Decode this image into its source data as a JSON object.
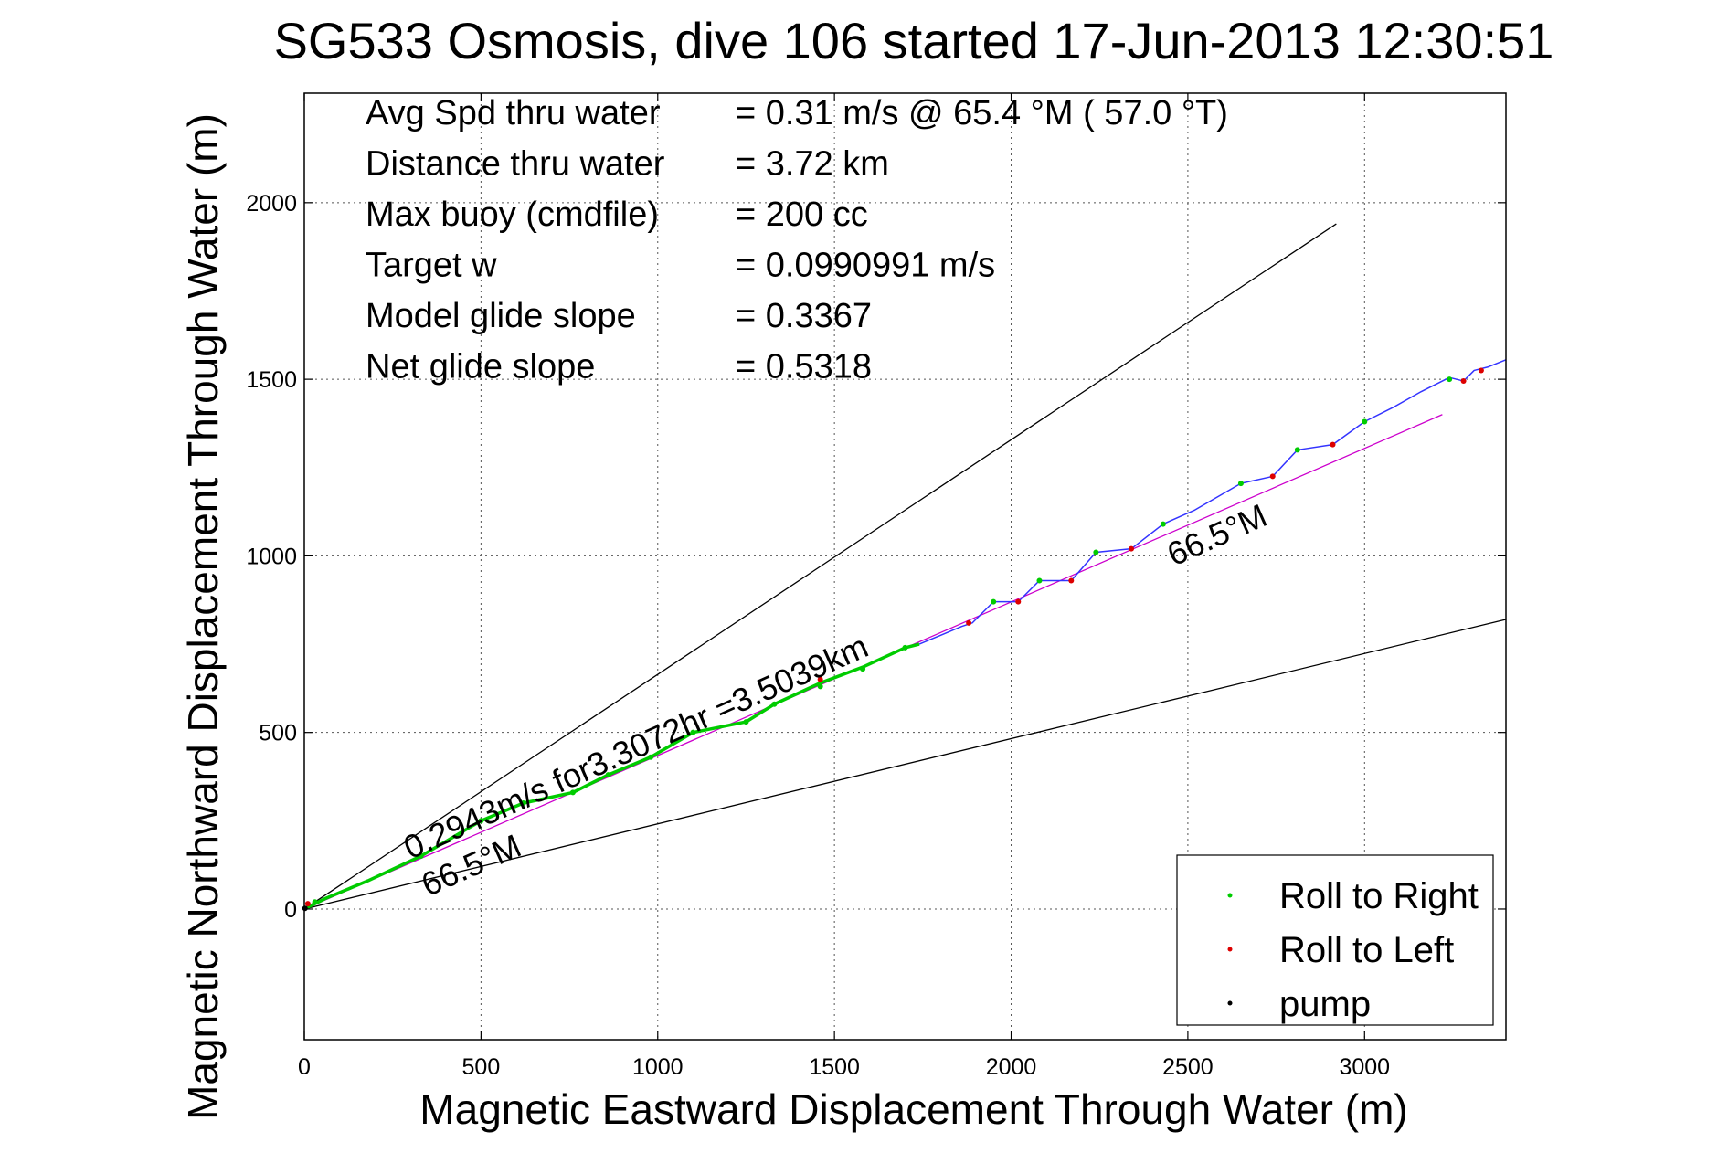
{
  "chart_data": {
    "type": "line",
    "title": "SG533 Osmosis, dive 106 started 17-Jun-2013 12:30:51",
    "xlabel": "Magnetic Eastward Displacement Through Water (m)",
    "ylabel": "Magnetic Northward Displacement Through Water (m)",
    "xlim": [
      0,
      3400
    ],
    "ylim": [
      -370,
      2310
    ],
    "xticks": [
      0,
      500,
      1000,
      1500,
      2000,
      2500,
      3000
    ],
    "yticks": [
      0,
      500,
      1000,
      1500,
      2000
    ],
    "grid": true,
    "legend_position": "bottom-right",
    "stats": [
      {
        "label": "Avg Spd thru water",
        "value": "=  0.31 m/s @  65.4 °M ( 57.0 °T)"
      },
      {
        "label": "Distance thru water",
        "value": "=  3.72 km"
      },
      {
        "label": "Max buoy (cmdfile)",
        "value": "= 200 cc"
      },
      {
        "label": "Target w",
        "value": "= 0.0990991 m/s"
      },
      {
        "label": "Model glide slope",
        "value": "= 0.3367"
      },
      {
        "label": "Net glide slope",
        "value": "= 0.5318"
      }
    ],
    "series": [
      {
        "name": "Roll to Right",
        "color": "#00cc00",
        "marker": "dot",
        "x": [
          30,
          330,
          500,
          620,
          760,
          860,
          980,
          1100,
          1250,
          1330,
          1460,
          1580,
          1700,
          1950,
          2080,
          2240,
          2430,
          2650,
          2810,
          3000,
          3240
        ],
        "y": [
          20,
          150,
          250,
          300,
          330,
          380,
          430,
          500,
          530,
          580,
          630,
          680,
          740,
          870,
          930,
          1010,
          1090,
          1205,
          1300,
          1380,
          1500
        ]
      },
      {
        "name": "Roll to Left",
        "color": "#dd0000",
        "marker": "dot",
        "x": [
          10,
          1460,
          1880,
          2020,
          2170,
          2340,
          2740,
          2910,
          3280,
          3330
        ],
        "y": [
          15,
          650,
          810,
          870,
          930,
          1020,
          1225,
          1315,
          1495,
          1525
        ]
      },
      {
        "name": "pump",
        "color": "#000000",
        "marker": "dot",
        "x": [
          2
        ],
        "y": [
          2
        ]
      },
      {
        "name": "",
        "color": "#3333ff",
        "marker": "none",
        "x": [
          1740,
          1800,
          1860,
          1890,
          1950,
          2020,
          2080,
          2170,
          2240,
          2340,
          2430,
          2520,
          2650,
          2740,
          2810,
          2910,
          3000,
          3080,
          3160,
          3240,
          3280,
          3310,
          3350,
          3400
        ],
        "y": [
          750,
          775,
          800,
          810,
          870,
          870,
          930,
          930,
          1010,
          1020,
          1090,
          1130,
          1205,
          1225,
          1300,
          1315,
          1380,
          1420,
          1465,
          1505,
          1495,
          1525,
          1535,
          1555
        ]
      },
      {
        "name": "",
        "color": "#00cc00",
        "marker": "none",
        "x": [
          0,
          60,
          180,
          330,
          500,
          620,
          760,
          860,
          980,
          1100,
          1250,
          1330,
          1460,
          1580,
          1700,
          1740
        ],
        "y": [
          0,
          30,
          80,
          150,
          250,
          300,
          330,
          380,
          430,
          500,
          530,
          580,
          640,
          685,
          740,
          750
        ]
      }
    ],
    "reference_lines": [
      {
        "x": [
          0,
          2920
        ],
        "y": [
          0,
          1940
        ],
        "color": "#000000"
      },
      {
        "x": [
          0,
          3400
        ],
        "y": [
          0,
          820
        ],
        "color": "#000000"
      },
      {
        "x": [
          0,
          3220
        ],
        "y": [
          0,
          1400
        ],
        "color": "#cc00cc"
      }
    ],
    "annotations": [
      {
        "text": "0.2943m/s for3.3072hr =3.5039km",
        "x": 300,
        "y": 140,
        "angle": 24
      },
      {
        "text": "66.5°M",
        "x": 350,
        "y": 35,
        "angle": 24
      },
      {
        "text": "66.5°M",
        "x": 2460,
        "y": 970,
        "angle": 24
      }
    ]
  }
}
